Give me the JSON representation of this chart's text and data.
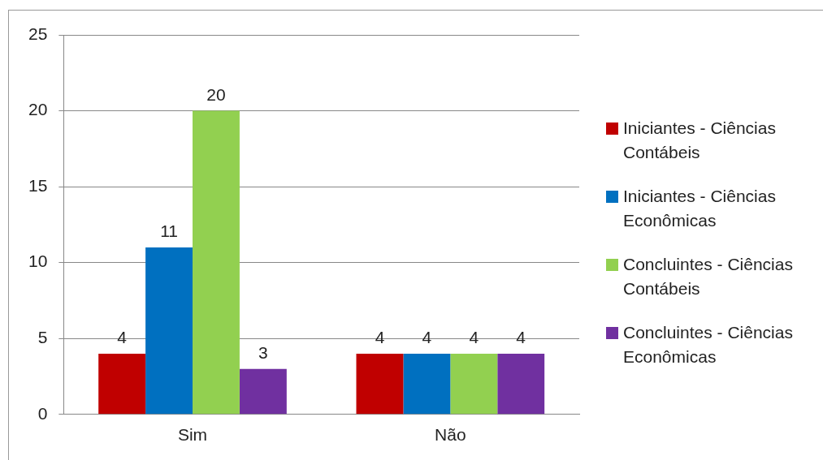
{
  "chart_data": {
    "type": "bar",
    "categories": [
      "Sim",
      "Não"
    ],
    "series": [
      {
        "name": "Iniciantes - Ciências Contábeis",
        "color": "#c00000",
        "values": [
          4,
          4
        ]
      },
      {
        "name": "Iniciantes - Ciências Econômicas",
        "color": "#0070c0",
        "values": [
          11,
          4
        ]
      },
      {
        "name": "Concluintes - Ciências Contábeis",
        "color": "#92d050",
        "values": [
          20,
          4
        ]
      },
      {
        "name": "Concluintes - Ciências Econômicas",
        "color": "#7030a0",
        "values": [
          3,
          4
        ]
      }
    ],
    "ylim": [
      0,
      25
    ],
    "yticks": [
      0,
      5,
      10,
      15,
      20,
      25
    ],
    "grid": "y",
    "legend": "right",
    "data_labels": true
  }
}
